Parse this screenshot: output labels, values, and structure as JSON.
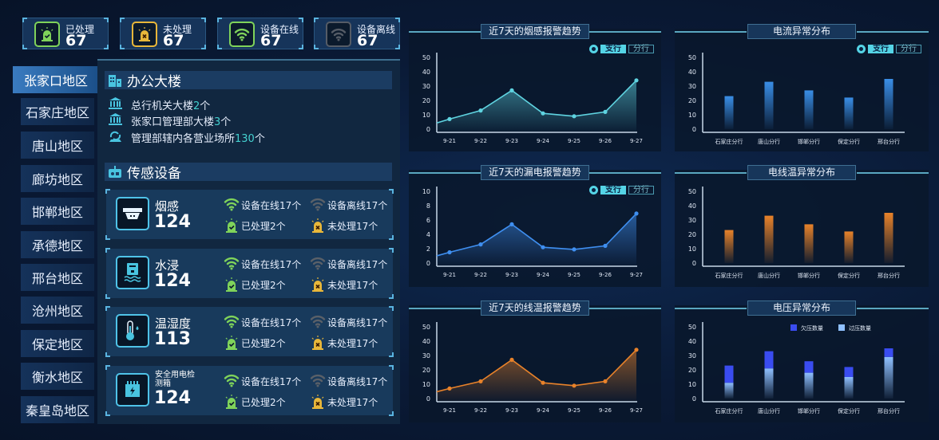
{
  "stats": [
    {
      "label": "已处理",
      "value": "67",
      "icon": "alarm-check-icon",
      "color": "#7fd35a"
    },
    {
      "label": "未处理",
      "value": "67",
      "icon": "alarm-x-icon",
      "color": "#e8b73a"
    },
    {
      "label": "设备在线",
      "value": "67",
      "icon": "wifi-icon",
      "color": "#7fd35a"
    },
    {
      "label": "设备离线",
      "value": "67",
      "icon": "wifi-off-icon",
      "color": "#555c66"
    }
  ],
  "sidebar": {
    "active": 0,
    "items": [
      "张家口地区",
      "石家庄地区",
      "唐山地区",
      "廊坊地区",
      "邯郸地区",
      "承德地区",
      "邢台地区",
      "沧州地区",
      "保定地区",
      "衡水地区",
      "秦皇岛地区"
    ]
  },
  "office": {
    "title": "办公大楼",
    "items": [
      {
        "text": "总行机关大楼",
        "count": "2",
        "unit": "个",
        "icon": "bank-icon"
      },
      {
        "text": "张家口管理部大楼",
        "count": "3",
        "unit": "个",
        "icon": "bank-icon"
      },
      {
        "text": "管理部辖内各营业场所",
        "count": "130",
        "unit": "个",
        "icon": "branch-icon"
      }
    ]
  },
  "sensors": {
    "title": "传感设备",
    "items": [
      {
        "name": "烟感",
        "count": "124",
        "icon": "smoke-detector-icon",
        "online": "设备在线17个",
        "offline": "设备离线17个",
        "handled": "已处理2个",
        "unhandled": "未处理17个"
      },
      {
        "name": "水浸",
        "count": "124",
        "icon": "water-sensor-icon",
        "online": "设备在线17个",
        "offline": "设备离线17个",
        "handled": "已处理2个",
        "unhandled": "未处理17个"
      },
      {
        "name": "温湿度",
        "count": "113",
        "icon": "thermometer-icon",
        "online": "设备在线17个",
        "offline": "设备离线17个",
        "handled": "已处理2个",
        "unhandled": "未处理17个"
      },
      {
        "name": "安全用电检测箱",
        "count": "124",
        "icon": "power-box-icon",
        "online": "设备在线17个",
        "offline": "设备离线17个",
        "handled": "已处理2个",
        "unhandled": "未处理17个"
      }
    ]
  },
  "toggle": {
    "a": "支行",
    "b": "分行"
  },
  "chart_data": [
    {
      "type": "area",
      "title": "近7天的烟感报警趋势",
      "categories": [
        "9-21",
        "9-22",
        "9-23",
        "9-24",
        "9-25",
        "9-26",
        "9-27"
      ],
      "values": [
        7,
        13,
        27,
        11,
        9,
        12,
        34
      ],
      "ylim": [
        0,
        50
      ],
      "yticks": [
        0,
        10,
        20,
        30,
        40,
        50
      ],
      "color": "#5fd3e0",
      "toggle": true
    },
    {
      "type": "bar",
      "title": "电流异常分布",
      "categories": [
        "石家庄分行",
        "唐山分行",
        "邯郸分行",
        "保定分行",
        "邢台分行"
      ],
      "values": [
        23,
        33,
        27,
        22,
        35
      ],
      "ylim": [
        0,
        50
      ],
      "yticks": [
        0,
        10,
        20,
        30,
        40,
        50
      ],
      "color": "#3a8ee6",
      "toggle": true
    },
    {
      "type": "area",
      "title": "近7天的漏电报警趋势",
      "categories": [
        "9-21",
        "9-22",
        "9-23",
        "9-24",
        "9-25",
        "9-26",
        "9-27"
      ],
      "values": [
        1.5,
        2.6,
        5.4,
        2.2,
        1.9,
        2.4,
        6.9
      ],
      "ylim": [
        0,
        10
      ],
      "yticks": [
        0,
        2,
        4,
        6,
        8,
        10
      ],
      "color": "#3f8ff0",
      "toggle": true
    },
    {
      "type": "bar",
      "title": "电线温异常分布",
      "categories": [
        "石家庄分行",
        "唐山分行",
        "邯郸分行",
        "保定分行",
        "邢台分行"
      ],
      "values": [
        23,
        33,
        27,
        22,
        35
      ],
      "ylim": [
        0,
        50
      ],
      "yticks": [
        0,
        10,
        20,
        30,
        40,
        50
      ],
      "color": "#e8822a",
      "toggle": false
    },
    {
      "type": "area",
      "title": "近7天的线温报警趋势",
      "categories": [
        "9-21",
        "9-22",
        "9-23",
        "9-24",
        "9-25",
        "9-26",
        "9-27"
      ],
      "values": [
        7,
        12,
        27,
        11,
        9,
        12,
        34
      ],
      "ylim": [
        0,
        50
      ],
      "yticks": [
        0,
        10,
        20,
        30,
        40,
        50
      ],
      "color": "#e8822a",
      "toggle": false
    },
    {
      "type": "stacked-bar",
      "title": "电压异常分布",
      "categories": [
        "石家庄分行",
        "唐山分行",
        "邯郸分行",
        "保定分行",
        "邢台分行"
      ],
      "series": [
        {
          "name": "过压数量",
          "values": [
            11,
            21,
            18,
            15,
            29
          ],
          "color": "#8fc0ff"
        },
        {
          "name": "欠压数量",
          "values": [
            12,
            12,
            8,
            7,
            6
          ],
          "color": "#3a4cf0"
        }
      ],
      "legend": "top",
      "ylim": [
        0,
        50
      ],
      "yticks": [
        0,
        10,
        20,
        30,
        40,
        50
      ],
      "toggle": false
    }
  ]
}
